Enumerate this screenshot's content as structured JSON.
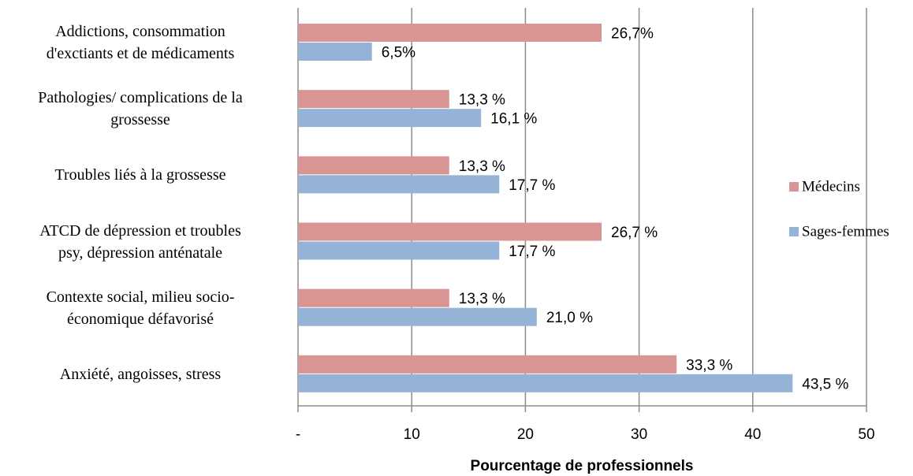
{
  "chart_data": {
    "type": "bar",
    "orientation": "horizontal",
    "x_label": "Pourcentage de professionnels",
    "categories": [
      "Addictions, consommation\nd'exctiants et de médicaments",
      "Pathologies/ complications de la\ngrossesse",
      "Troubles liés à la grossesse",
      "ATCD de dépression et troubles\npsy, dépression anténatale",
      "Contexte social, milieu socio-\néconomique défavorisé",
      "Anxiété, angoisses, stress"
    ],
    "series": [
      {
        "name": "Médecins",
        "color": "#d99594",
        "values": [
          26.7,
          13.3,
          13.3,
          26.7,
          13.3,
          33.3
        ],
        "value_labels": [
          "26,7%",
          "13,3 %",
          "13,3 %",
          "26,7 %",
          "13,3 %",
          "33,3 %"
        ]
      },
      {
        "name": "Sages-femmes",
        "color": "#95b3d7",
        "values": [
          6.5,
          16.1,
          17.7,
          17.7,
          21.0,
          43.5
        ],
        "value_labels": [
          "6,5%",
          "16,1 %",
          "17,7 %",
          "17,7 %",
          "21,0 %",
          "43,5 %"
        ]
      }
    ],
    "xlim": [
      0,
      50
    ],
    "xticks": [
      {
        "value": 0,
        "label": "-"
      },
      10,
      20,
      30,
      40,
      50
    ],
    "grid": true,
    "legend": "right"
  }
}
